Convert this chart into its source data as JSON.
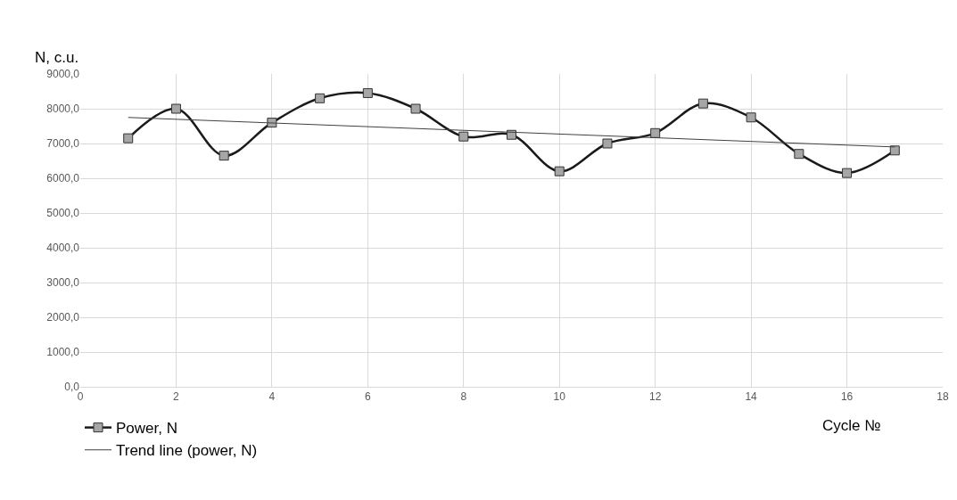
{
  "chart_data": {
    "type": "line",
    "xlabel": "Cycle №",
    "ylabel": "N, c.u.",
    "xlim": [
      0,
      18
    ],
    "xticks": [
      0,
      2,
      4,
      6,
      8,
      10,
      12,
      14,
      16,
      18
    ],
    "ylim": [
      0,
      9000
    ],
    "yticks": [
      {
        "value": 0,
        "label": "0,0"
      },
      {
        "value": 1000,
        "label": "1000,0"
      },
      {
        "value": 2000,
        "label": "2000,0"
      },
      {
        "value": 3000,
        "label": "3000,0"
      },
      {
        "value": 4000,
        "label": "4000,0"
      },
      {
        "value": 5000,
        "label": "5000,0"
      },
      {
        "value": 6000,
        "label": "6000,0"
      },
      {
        "value": 7000,
        "label": "7000,0"
      },
      {
        "value": 8000,
        "label": "8000,0"
      },
      {
        "value": 9000,
        "label": "9000,0"
      }
    ],
    "grid": true,
    "legend": "bottom left",
    "series": [
      {
        "name": "Power, N",
        "color": "#1a1a1a",
        "marker": "square",
        "x": [
          1,
          2,
          3,
          4,
          5,
          6,
          7,
          8,
          9,
          10,
          11,
          12,
          13,
          14,
          15,
          16,
          17
        ],
        "values": [
          7150,
          8000,
          6650,
          7600,
          8300,
          8450,
          8000,
          7200,
          7250,
          6200,
          7000,
          7300,
          8150,
          7750,
          6700,
          6150,
          6800
        ]
      },
      {
        "name": "Trend line (power, N)",
        "color": "#404040",
        "marker": "none",
        "x": [
          1,
          17
        ],
        "values": [
          7750,
          6900
        ]
      }
    ]
  }
}
